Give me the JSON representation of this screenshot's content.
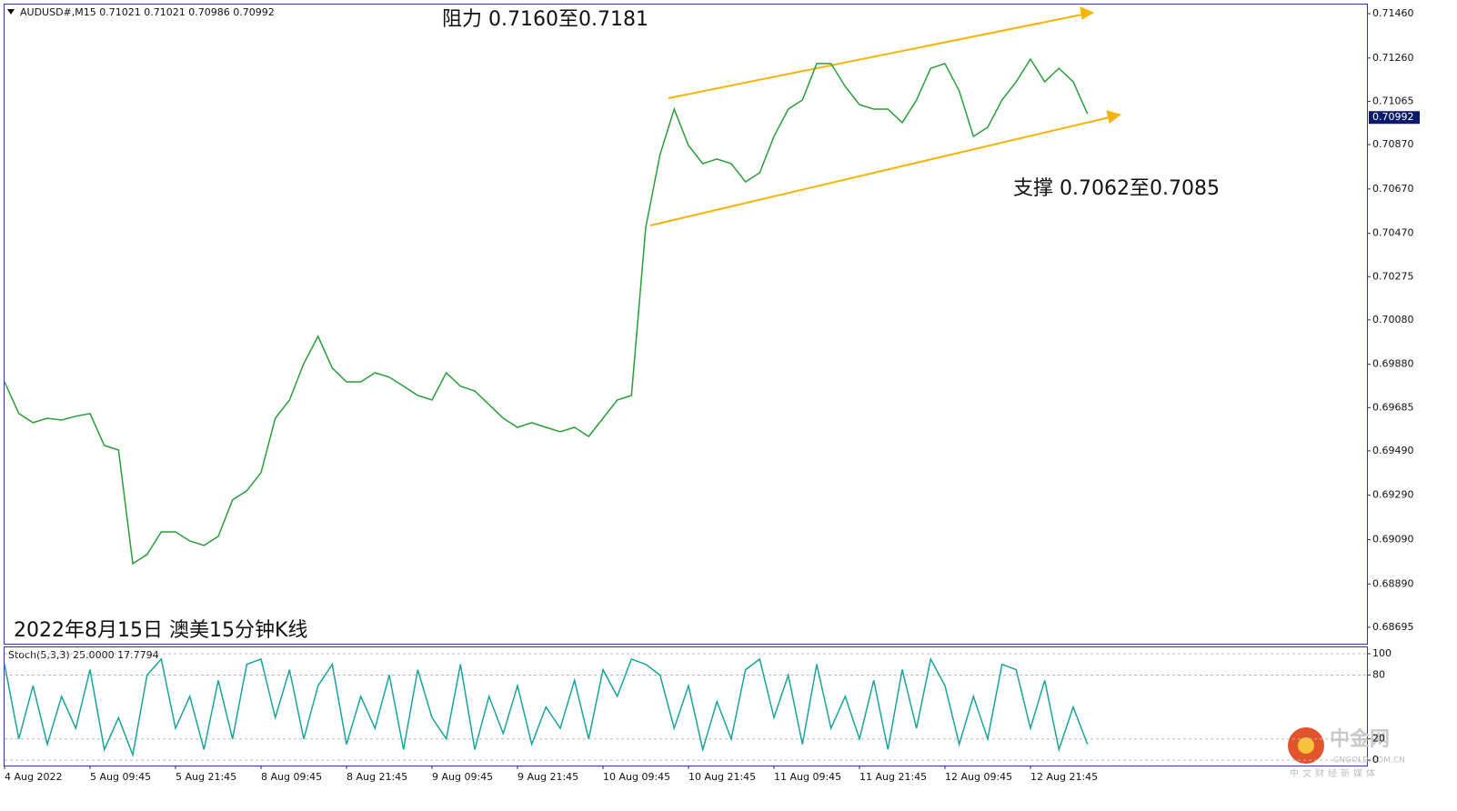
{
  "chart_data": [
    {
      "type": "line",
      "title": "AUDUSD#,M15  0.71021 0.71021 0.70986 0.70992",
      "annotations": [
        "阻力 0.7160至0.7181",
        "支撑 0.7062至0.7085",
        "2022年8月15日 澳美15分钟K线"
      ],
      "categories": [
        "4 Aug 2022",
        null,
        null,
        null,
        null,
        null,
        "5 Aug 09:45",
        null,
        null,
        null,
        null,
        null,
        "5 Aug 21:45",
        null,
        null,
        null,
        null,
        null,
        "8 Aug 09:45",
        null,
        null,
        null,
        null,
        null,
        "8 Aug 21:45",
        null,
        null,
        null,
        null,
        null,
        "9 Aug 09:45",
        null,
        null,
        null,
        null,
        null,
        "9 Aug 21:45",
        null,
        null,
        null,
        null,
        null,
        "10 Aug 09:45",
        null,
        null,
        null,
        null,
        null,
        "10 Aug 21:45",
        null,
        null,
        null,
        null,
        null,
        "11 Aug 09:45",
        null,
        null,
        null,
        null,
        null,
        "11 Aug 21:45",
        null,
        null,
        null,
        null,
        null,
        "12 Aug 09:45",
        null,
        null,
        null,
        null,
        null,
        "12 Aug 21:45",
        null,
        null,
        null,
        null
      ],
      "values": [
        0.69801,
        0.69658,
        0.69617,
        0.69637,
        0.69629,
        0.69646,
        0.69658,
        0.69514,
        0.69494,
        0.68982,
        0.69023,
        0.69125,
        0.69125,
        0.69084,
        0.69064,
        0.69105,
        0.69269,
        0.6931,
        0.69392,
        0.69637,
        0.69719,
        0.69883,
        0.70006,
        0.69863,
        0.69801,
        0.69801,
        0.69842,
        0.69822,
        0.69781,
        0.6974,
        0.69719,
        0.69842,
        0.69781,
        0.6976,
        0.69699,
        0.69637,
        0.69596,
        0.69617,
        0.69596,
        0.69576,
        0.69596,
        0.69555,
        0.69637,
        0.69719,
        0.6974,
        0.70497,
        0.70825,
        0.7103,
        0.70866,
        0.70784,
        0.70805,
        0.70784,
        0.70702,
        0.70743,
        0.70907,
        0.7103,
        0.71071,
        0.71235,
        0.71235,
        0.71132,
        0.7105,
        0.7103,
        0.7103,
        0.70969,
        0.71071,
        0.71214,
        0.71235,
        0.71112,
        0.70907,
        0.70948,
        0.71071,
        0.71153,
        0.71255,
        0.71153,
        0.71214,
        0.71153,
        0.71009
      ],
      "color": "#2a9d3a",
      "ylim": [
        0.68621,
        0.71501
      ],
      "yticks": [
        {
          "value": 0.7146,
          "label": "0.71460"
        },
        {
          "value": 0.7126,
          "label": "0.71260"
        },
        {
          "value": 0.71065,
          "label": "0.71065"
        },
        {
          "value": 0.7087,
          "label": "0.70870"
        },
        {
          "value": 0.7067,
          "label": "0.70670"
        },
        {
          "value": 0.7047,
          "label": "0.70470"
        },
        {
          "value": 0.70275,
          "label": "0.70275"
        },
        {
          "value": 0.7008,
          "label": "0.70080"
        },
        {
          "value": 0.6988,
          "label": "0.69880"
        },
        {
          "value": 0.69685,
          "label": "0.69685"
        },
        {
          "value": 0.6949,
          "label": "0.69490"
        },
        {
          "value": 0.6929,
          "label": "0.69290"
        },
        {
          "value": 0.6909,
          "label": "0.69090"
        },
        {
          "value": 0.6889,
          "label": "0.68890"
        },
        {
          "value": 0.68695,
          "label": "0.68695"
        }
      ],
      "last_price": 0.70992,
      "grid": false
    },
    {
      "type": "line",
      "title": "Stoch(5,3,3) 25.0000 17.7794",
      "values": [
        90,
        20,
        70,
        15,
        60,
        30,
        85,
        10,
        40,
        5,
        80,
        95,
        30,
        60,
        10,
        75,
        20,
        90,
        95,
        40,
        85,
        20,
        70,
        90,
        15,
        60,
        30,
        80,
        10,
        85,
        40,
        20,
        90,
        10,
        60,
        25,
        70,
        15,
        50,
        30,
        75,
        20,
        85,
        60,
        95,
        90,
        80,
        30,
        70,
        10,
        55,
        20,
        85,
        95,
        40,
        80,
        15,
        90,
        30,
        60,
        20,
        75,
        10,
        85,
        30,
        95,
        70,
        15,
        60,
        20,
        90,
        85,
        30,
        75,
        10,
        50,
        15
      ],
      "color": "#1aa39a",
      "ylim": [
        -5,
        106
      ],
      "yticks": [
        100,
        80,
        20,
        0
      ],
      "grid": true
    }
  ],
  "watermark": {
    "name": "中金网",
    "site": "CNGOLD.COM.CN",
    "slogan": "中文财经新媒体"
  }
}
